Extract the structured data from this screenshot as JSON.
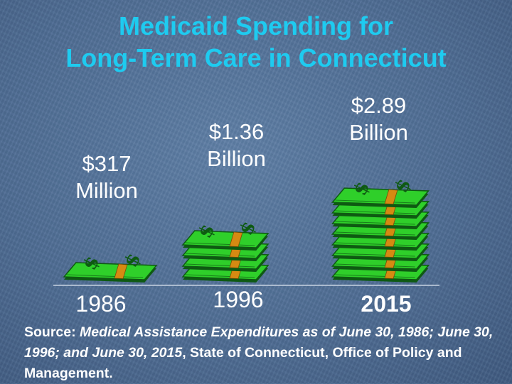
{
  "title_line1": "Medicaid Spending for",
  "title_line2": "Long-Term Care in Connecticut",
  "chart_data": {
    "type": "bar",
    "categories": [
      "1986",
      "1996",
      "2015"
    ],
    "values": [
      317000000,
      1360000000,
      2890000000
    ],
    "value_labels": [
      {
        "amount": "$317",
        "unit": "Million"
      },
      {
        "amount": "$1.36",
        "unit": "Billion"
      },
      {
        "amount": "$2.89",
        "unit": "Billion"
      }
    ],
    "value_unit": "USD",
    "stack_counts": [
      1,
      4,
      8
    ],
    "bar_glyph": "$"
  },
  "source": {
    "prefix": "Source: ",
    "italic": "Medical Assistance Expenditures as of June 30, 1986; June 30, 1996; and June 30, 2015",
    "suffix": ", State of Connecticut, Office of Policy and Management."
  },
  "colors": {
    "title": "#1ecbf0",
    "text": "#ffffff",
    "money_green": "#2fcf2a",
    "money_dark": "#0e5a12",
    "band": "#d58a12",
    "baseline": "#c8d3e2"
  }
}
